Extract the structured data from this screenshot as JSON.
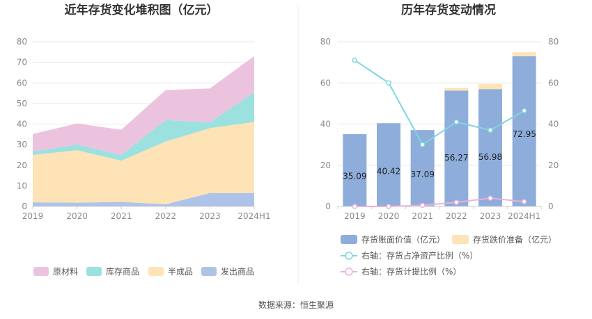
{
  "footer": {
    "source": "数据来源：恒生聚源"
  },
  "colors": {
    "raw_material": "#ecc3df",
    "inventory_goods": "#9ae1df",
    "semi_finished": "#fde3b5",
    "shipped_goods": "#aec3e8",
    "book_value_bar": "#8eaddb",
    "impairment_bar": "#fde3b5",
    "net_asset_ratio_line": "#7fd6de",
    "provision_ratio_line": "#e8b2dc",
    "grid": "#e6e6e6",
    "axis": "#cccccc"
  },
  "chart_data": [
    {
      "type": "area",
      "stacked": true,
      "title": "近年存货变化堆积图（亿元）",
      "categories": [
        "2019",
        "2020",
        "2021",
        "2022",
        "2023",
        "2024H1"
      ],
      "ylim": [
        0,
        80
      ],
      "yticks": [
        "0",
        "10",
        "20",
        "30",
        "40",
        "50",
        "60",
        "70",
        "80"
      ],
      "grid": true,
      "legend_position": "bottom",
      "series": [
        {
          "name": "发出商品",
          "key": "shipped_goods",
          "values": [
            2,
            1.8,
            2.2,
            1,
            6.5,
            6.5
          ]
        },
        {
          "name": "半成品",
          "key": "semi_finished",
          "values": [
            23,
            25.5,
            20,
            30.5,
            31.5,
            34.5
          ]
        },
        {
          "name": "库存商品",
          "key": "inventory_goods",
          "values": [
            1.7,
            2.7,
            2.8,
            10.5,
            2.8,
            14.5
          ]
        },
        {
          "name": "原材料",
          "key": "raw_material",
          "values": [
            8.5,
            10.3,
            12.2,
            14.5,
            16.5,
            17.5
          ]
        }
      ],
      "legend_order": [
        "原材料",
        "库存商品",
        "半成品",
        "发出商品"
      ]
    },
    {
      "type": "bar",
      "stacked": true,
      "title": "历年存货变动情况",
      "categories": [
        "2019",
        "2020",
        "2021",
        "2022",
        "2023",
        "2024H1"
      ],
      "ylim_left": [
        0,
        80
      ],
      "ylim_right": [
        0,
        80
      ],
      "yticks": [
        "0",
        "20",
        "40",
        "60",
        "80"
      ],
      "grid": true,
      "legend_position": "bottom",
      "series": [
        {
          "name": "存货账面价值（亿元）",
          "key": "book_value_bar",
          "values": [
            35.09,
            40.42,
            37.09,
            56.27,
            56.98,
            72.95
          ],
          "labels": [
            "35.09",
            "40.42",
            "37.09",
            "56.27",
            "56.98",
            "72.95"
          ]
        },
        {
          "name": "存货跌价准备（亿元）",
          "key": "impairment_bar",
          "values": [
            0,
            0,
            0,
            1.2,
            2.5,
            1.9
          ]
        }
      ],
      "lines": [
        {
          "name": "右轴：存货占净资产比例（%）",
          "key": "net_asset_ratio_line",
          "axis": "right",
          "values": [
            71,
            60,
            30,
            41,
            37,
            46.5
          ]
        },
        {
          "name": "右轴：存货计提比例（%）",
          "key": "provision_ratio_line",
          "axis": "right",
          "values": [
            0,
            0,
            0.5,
            2,
            4,
            2.3
          ]
        }
      ]
    }
  ]
}
